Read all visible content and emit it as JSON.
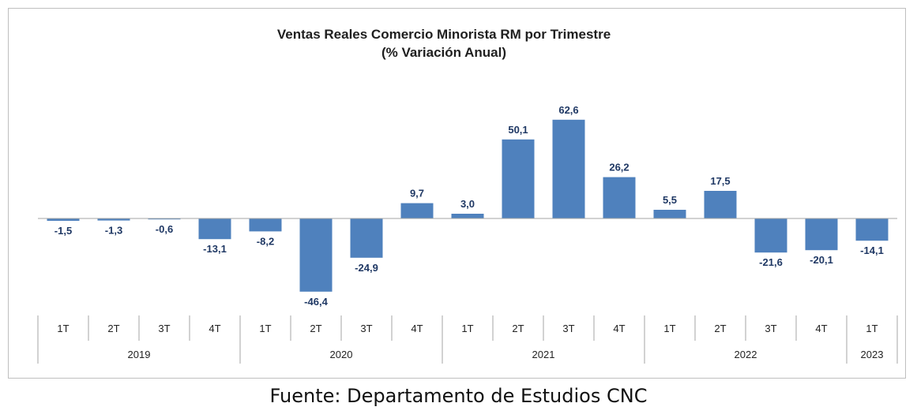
{
  "chart_data": {
    "type": "bar",
    "title": [
      "Ventas Reales Comercio Minorista RM por Trimestre",
      "(% Variación Anual)"
    ],
    "categories": [
      "1T",
      "2T",
      "3T",
      "4T",
      "1T",
      "2T",
      "3T",
      "4T",
      "1T",
      "2T",
      "3T",
      "4T",
      "1T",
      "2T",
      "3T",
      "4T",
      "1T"
    ],
    "years": [
      {
        "label": "2019",
        "count": 4
      },
      {
        "label": "2020",
        "count": 4
      },
      {
        "label": "2021",
        "count": 4
      },
      {
        "label": "2022",
        "count": 4
      },
      {
        "label": "2023",
        "count": 1
      }
    ],
    "values": [
      -1.5,
      -1.3,
      -0.6,
      -13.1,
      -8.2,
      -46.4,
      -24.9,
      9.7,
      3.0,
      50.1,
      62.6,
      26.2,
      5.5,
      17.5,
      -21.6,
      -20.1,
      -14.1
    ],
    "value_labels": [
      "-1,5",
      "-1,3",
      "-0,6",
      "-13,1",
      "-8,2",
      "-46,4",
      "-24,9",
      "9,7",
      "3,0",
      "50,1",
      "62,6",
      "26,2",
      "5,5",
      "17,5",
      "-21,6",
      "-20,1",
      "-14,1"
    ],
    "bar_color": "#4f81bd",
    "label_color": "#1f3864",
    "ylim": [
      -50,
      70
    ],
    "grid": false,
    "legend": "none"
  },
  "source": "Fuente: Departamento de Estudios CNC"
}
